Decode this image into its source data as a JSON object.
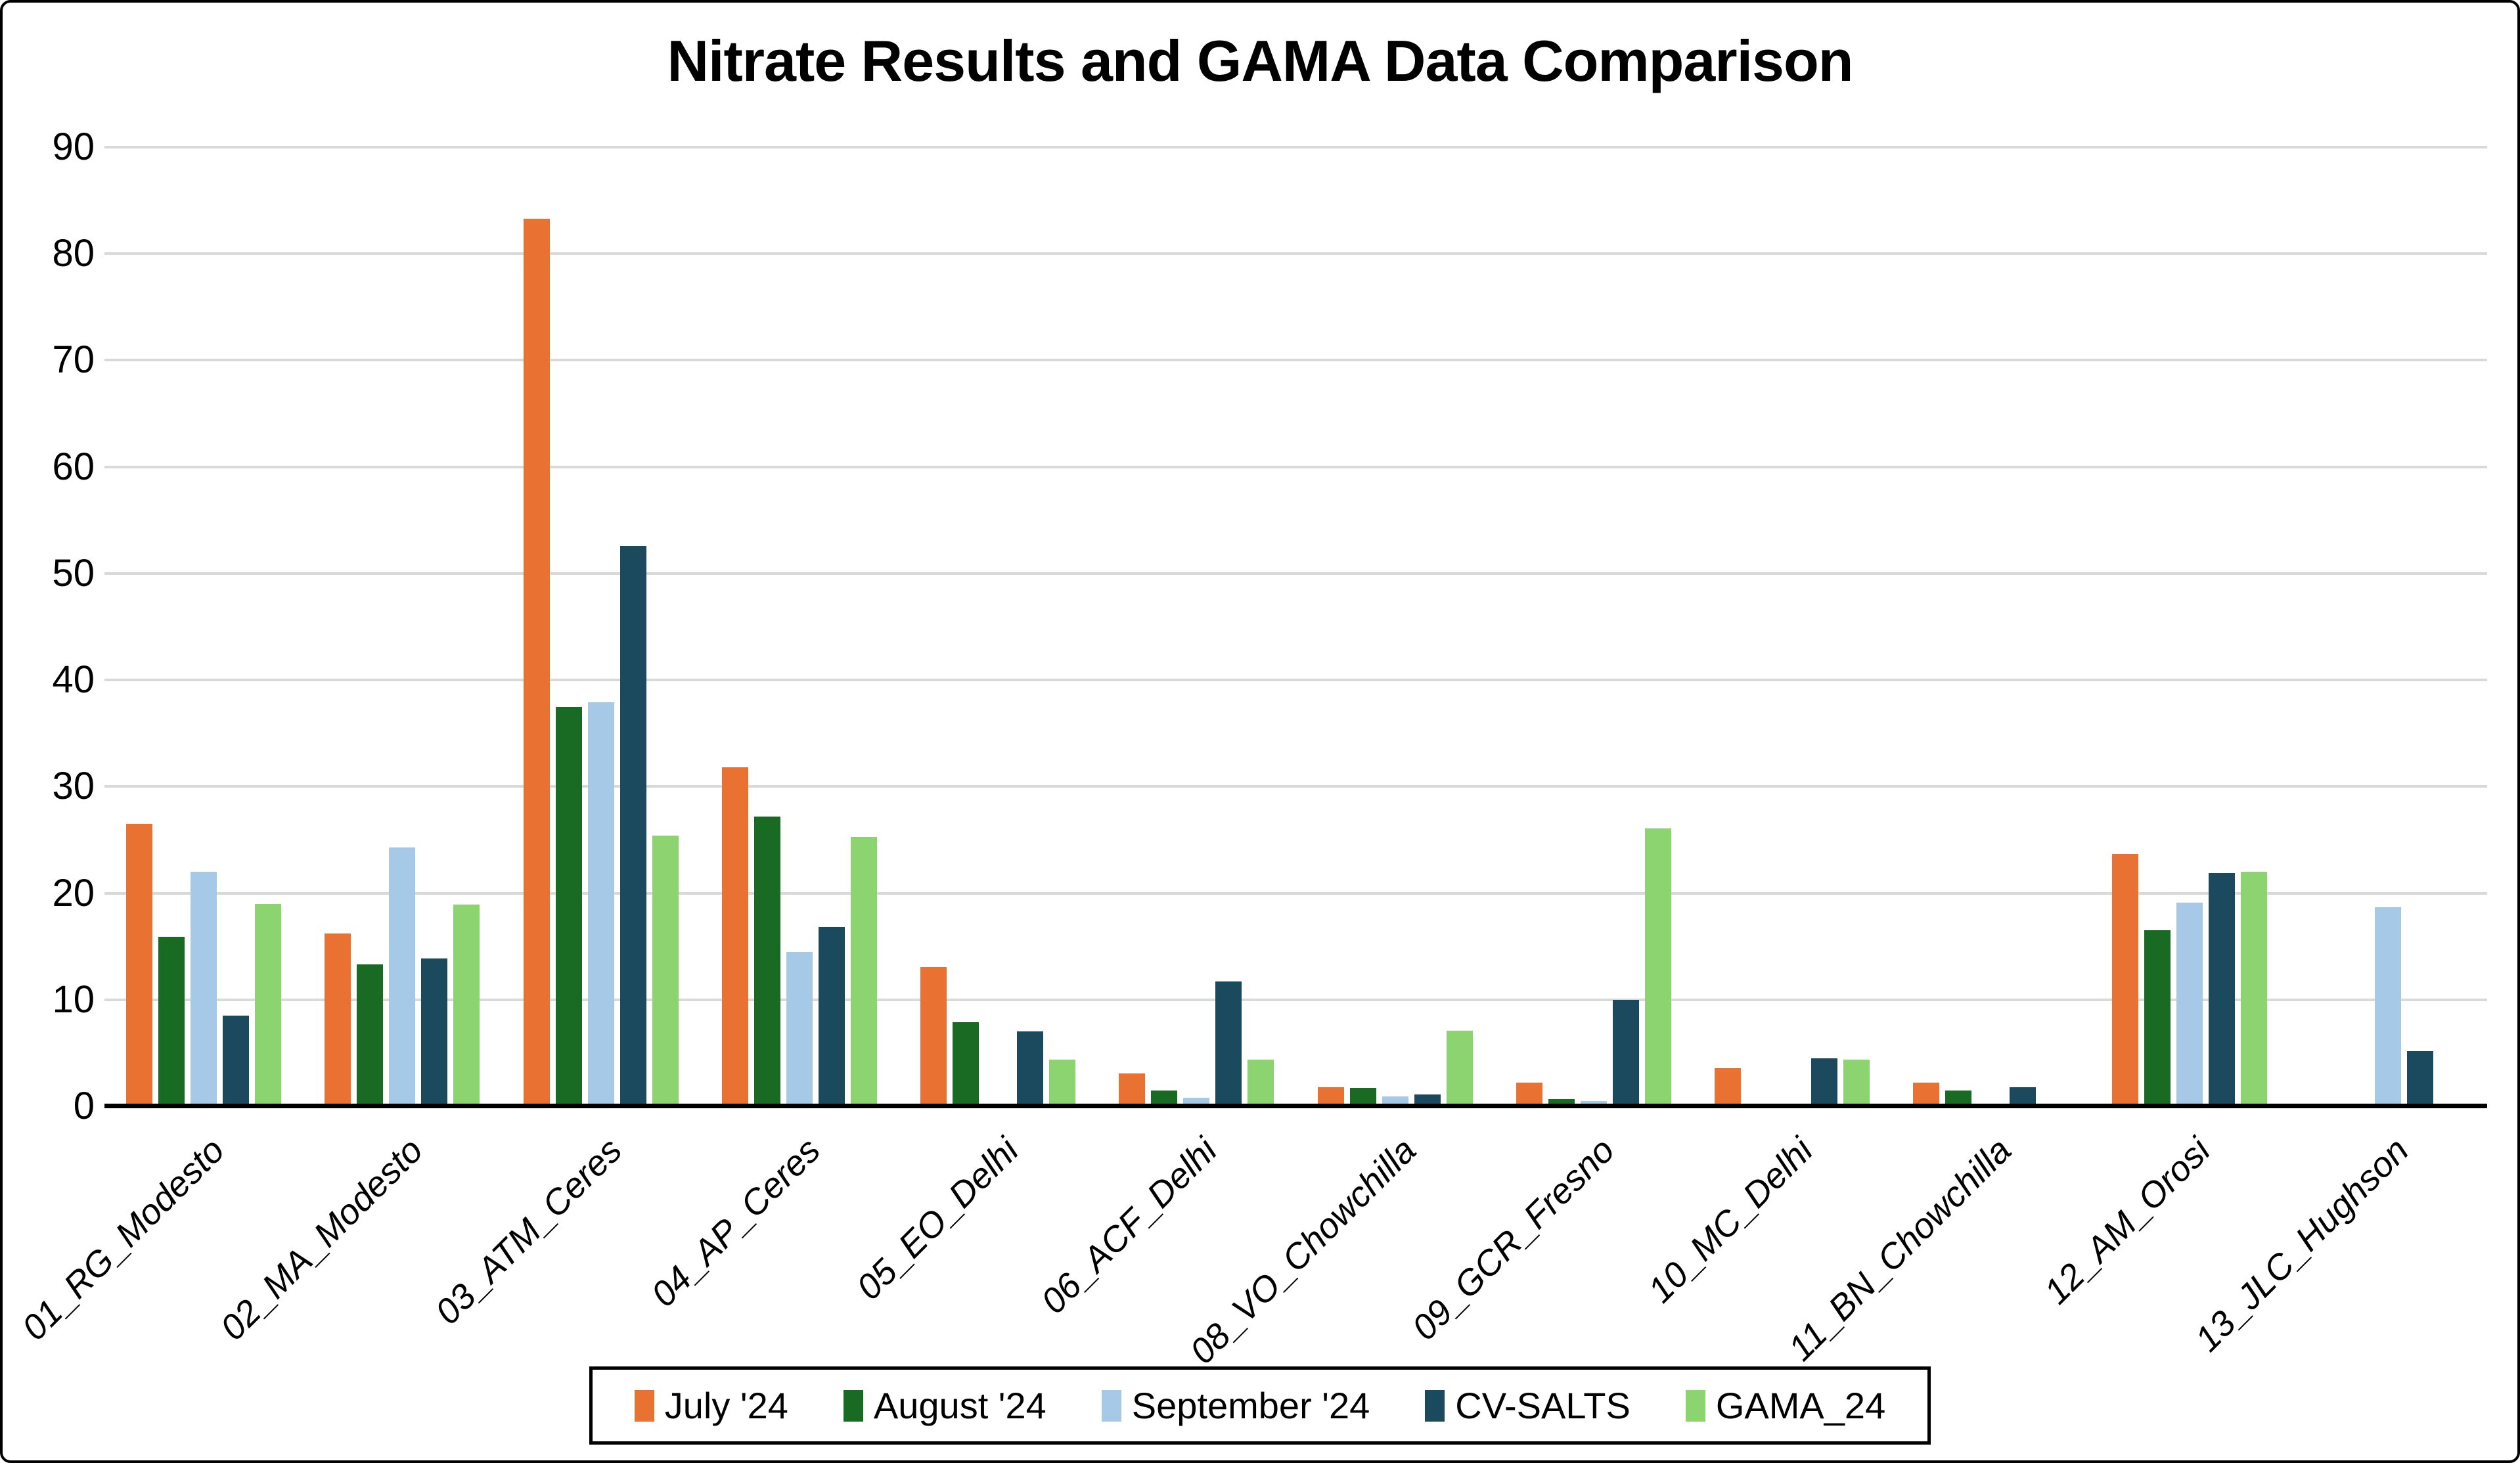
{
  "chart_data": {
    "type": "bar",
    "title": "Nitrate Results and GAMA Data Comparison",
    "categories": [
      "01_RG_Modesto",
      "02_MA_Modesto",
      "03_ATM_Ceres",
      "04_AP_Ceres",
      "05_EO_Delhi",
      "06_ACF_Delhi",
      "08_VO_Chowchilla",
      "09_GCR_Fresno",
      "10_MC_Delhi",
      "11_BN_Chowchilla",
      "12_AM_Orosi",
      "13_JLC_Hughson"
    ],
    "series": [
      {
        "name": "July '24",
        "color": "#E97132",
        "values": [
          26.5,
          16.2,
          83.3,
          31.8,
          13.1,
          3.1,
          1.8,
          2.2,
          3.6,
          2.2,
          23.7,
          0
        ]
      },
      {
        "name": "August '24",
        "color": "#196B24",
        "values": [
          15.9,
          13.3,
          37.5,
          27.2,
          7.9,
          1.5,
          1.7,
          0.7,
          0,
          1.5,
          16.5,
          0
        ]
      },
      {
        "name": "September '24",
        "color": "#A6C9E8",
        "values": [
          22.0,
          24.3,
          37.9,
          14.5,
          0,
          0.8,
          0.9,
          0.5,
          0,
          0,
          19.1,
          18.7
        ]
      },
      {
        "name": "CV-SALTS",
        "color": "#1B4A5E",
        "values": [
          8.5,
          13.9,
          52.6,
          16.8,
          7.0,
          11.7,
          1.1,
          10.0,
          4.5,
          1.8,
          21.9,
          5.2
        ]
      },
      {
        "name": "GAMA_24",
        "color": "#8BD470",
        "values": [
          19.0,
          18.9,
          25.4,
          25.3,
          4.4,
          4.4,
          7.1,
          26.1,
          4.4,
          0,
          22.0,
          0
        ]
      }
    ],
    "xlabel": "",
    "ylabel": "",
    "ylim": [
      0,
      90
    ],
    "y_ticks": [
      0,
      10,
      20,
      30,
      40,
      50,
      60,
      70,
      80,
      90
    ],
    "grid": "horizontal",
    "legend_position": "bottom",
    "gridline_color": "#D9D9D9",
    "axis_color": "#000000"
  }
}
